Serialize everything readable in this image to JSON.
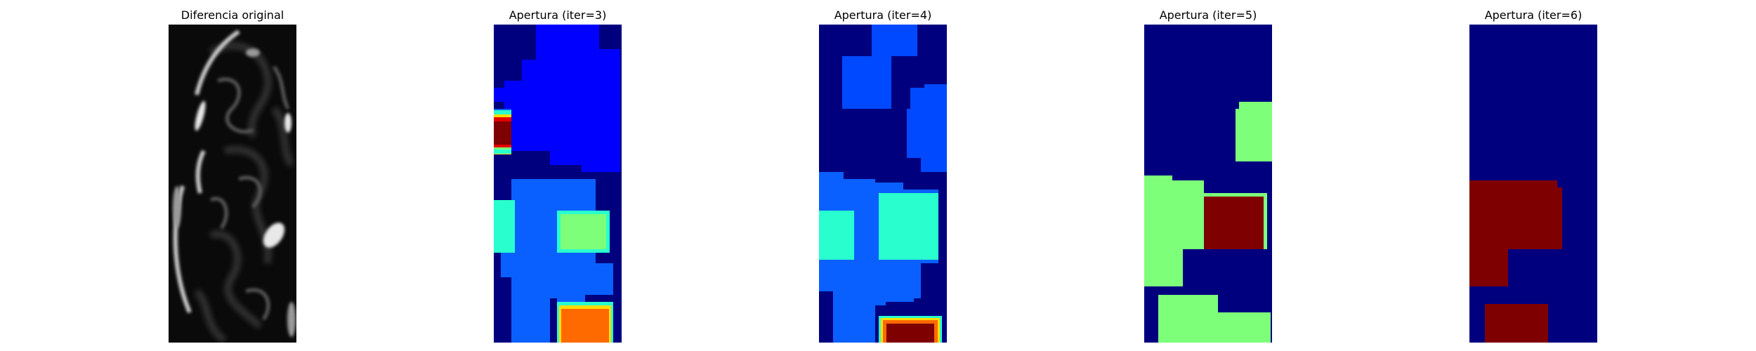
{
  "panels": [
    {
      "title": "Diferencia original",
      "kind": "grayscale"
    },
    {
      "title": "Apertura (iter=3)",
      "kind": "label-map"
    },
    {
      "title": "Apertura (iter=4)",
      "kind": "label-map"
    },
    {
      "title": "Apertura (iter=5)",
      "kind": "label-map"
    },
    {
      "title": "Apertura (iter=6)",
      "kind": "label-map"
    }
  ],
  "colormap": {
    "gray": [
      "#000000",
      "#ffffff"
    ],
    "jet": {
      "navy": "#00007f",
      "blue": "#0000ff",
      "mid_blue": "#0049ff",
      "light_blue": "#0a60ff",
      "cyan": "#29ffce",
      "green": "#7dff7a",
      "orange": "#ff6a00",
      "dark_red": "#7f0000",
      "red": "#e50000",
      "yellow": "#ffdd00"
    }
  }
}
